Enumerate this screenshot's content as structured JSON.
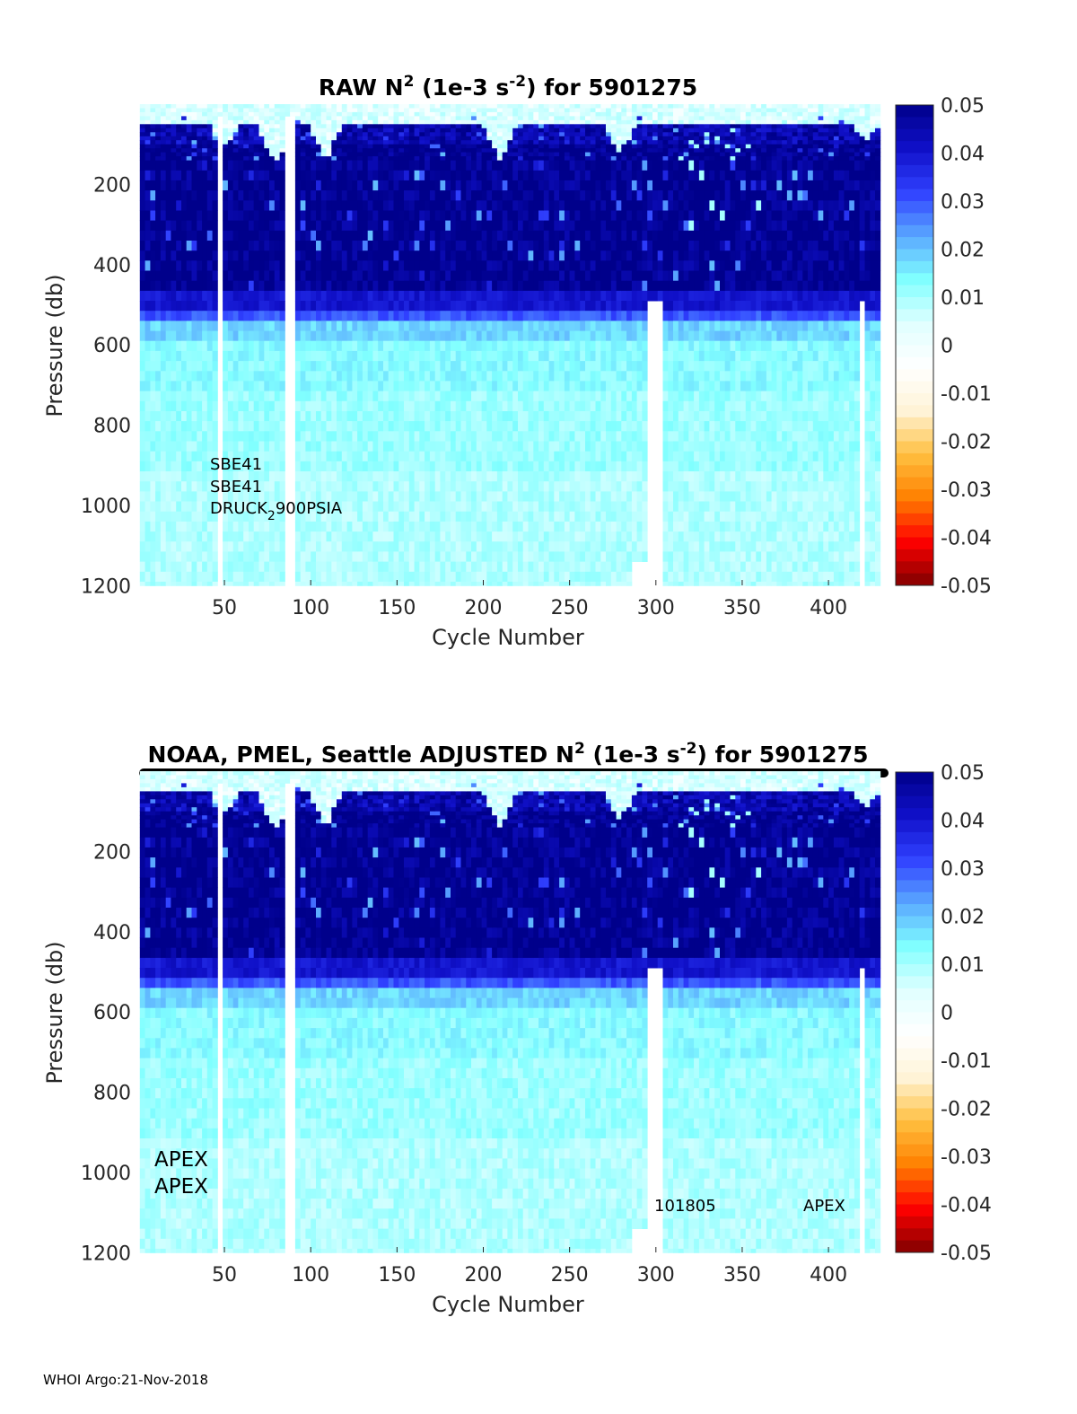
{
  "chart_data": [
    {
      "type": "heatmap",
      "title_prefix": "RAW N",
      "title_sup1": "2",
      "title_mid": " (1e-3 s",
      "title_sup2": "-2",
      "title_suffix": ") for 5901275",
      "xlabel": "Cycle Number",
      "ylabel": "Pressure (db)",
      "xlim": [
        0,
        428
      ],
      "ylim": [
        1200,
        0
      ],
      "xticks": [
        "50",
        "100",
        "150",
        "200",
        "250",
        "300",
        "350",
        "400"
      ],
      "yticks": [
        "200",
        "400",
        "600",
        "800",
        "1000",
        "1200"
      ],
      "clim": [
        -0.05,
        0.05
      ],
      "colorbar_ticks": [
        "0.05",
        "0.04",
        "0.03",
        "0.02",
        "0.01",
        "0",
        "-0.01",
        "-0.02",
        "-0.03",
        "-0.04",
        "-0.05"
      ],
      "annotations": [
        "SBE41",
        "SBE41",
        "DRUCK",
        "2",
        "900PSIA"
      ]
    },
    {
      "type": "heatmap",
      "title_prefix": "NOAA, PMEL, Seattle  ADJUSTED N",
      "title_sup1": "2",
      "title_mid": " (1e-3 s",
      "title_sup2": "-2",
      "title_suffix": ") for 5901275",
      "xlabel": "Cycle Number",
      "ylabel": "Pressure (db)",
      "xlim": [
        0,
        428
      ],
      "ylim": [
        1200,
        0
      ],
      "xticks": [
        "50",
        "100",
        "150",
        "200",
        "250",
        "300",
        "350",
        "400"
      ],
      "yticks": [
        "200",
        "400",
        "600",
        "800",
        "1000",
        "1200"
      ],
      "clim": [
        -0.05,
        0.05
      ],
      "colorbar_ticks": [
        "0.05",
        "0.04",
        "0.03",
        "0.02",
        "0.01",
        "0",
        "-0.01",
        "-0.02",
        "-0.03",
        "-0.04",
        "-0.05"
      ],
      "annotations": [
        "APEX",
        "APEX",
        "101805",
        "APEX"
      ]
    }
  ],
  "profile_model": {
    "pressure_bands": [
      0,
      50,
      100,
      460,
      500,
      540,
      580,
      700,
      900,
      1200
    ],
    "mean_n2": [
      0.004,
      0.045,
      0.05,
      0.04,
      0.03,
      0.018,
      0.013,
      0.011,
      0.009,
      0.008
    ],
    "mixed_layer_peaks": [
      {
        "cycle": 48,
        "depth": 90
      },
      {
        "cycle": 78,
        "depth": 140
      },
      {
        "cycle": 108,
        "depth": 120
      },
      {
        "cycle": 208,
        "depth": 130
      },
      {
        "cycle": 278,
        "depth": 110
      },
      {
        "cycle": 420,
        "depth": 80
      }
    ],
    "missing_cycles": [
      47,
      48,
      86,
      90,
      296,
      300,
      301,
      302,
      303,
      420
    ]
  },
  "colors": {
    "cmap": [
      "#800000",
      "#ff0000",
      "#ff8000",
      "#ffc040",
      "#fff4d8",
      "#ffffff",
      "#e0ffff",
      "#80ffff",
      "#5aa8ff",
      "#3040ff",
      "#1010c8",
      "#00008b"
    ]
  },
  "footer": "WHOI Argo:21-Nov-2018"
}
